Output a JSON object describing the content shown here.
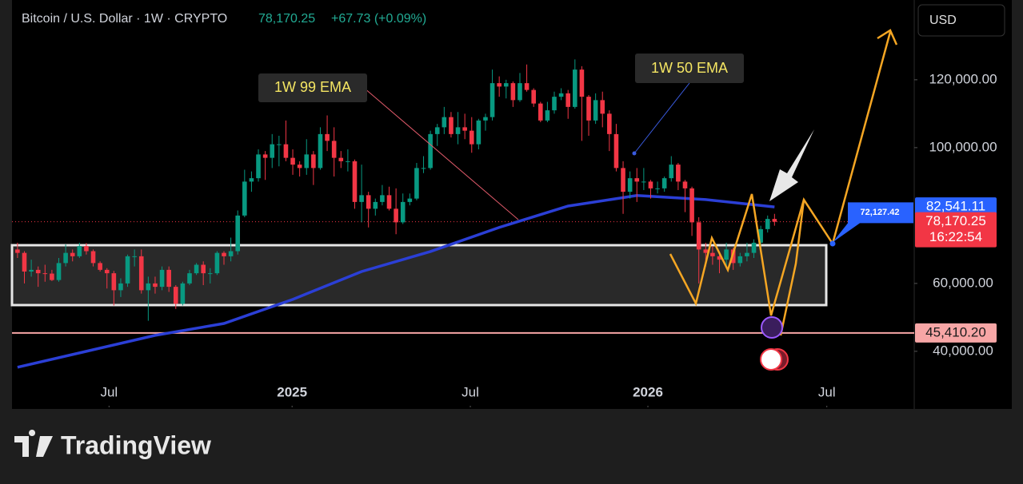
{
  "header": {
    "symbol": "Bitcoin / U.S. Dollar · 1W · CRYPTO",
    "price": "78,170.25",
    "change": "+67.73 (+0.09%)",
    "currency": "USD"
  },
  "brand": "TradingView",
  "chart_data": {
    "type": "candlestick",
    "up_color": "#089981",
    "down_color": "#f23645",
    "open": [
      70000,
      69000,
      63500,
      64000,
      63000,
      62900,
      61000,
      66000,
      69000,
      68000,
      71000,
      69500,
      66000,
      64000,
      63000,
      58000,
      60000,
      68000,
      68000,
      58000,
      60000,
      59000,
      64000,
      59000,
      54000,
      60000,
      63000,
      65500,
      63000,
      63000,
      69000,
      68000,
      69500,
      80000,
      90000,
      91000,
      98000,
      97000,
      101000,
      101000,
      97000,
      95000,
      94000,
      98000,
      94000,
      104000,
      102000,
      97000,
      96000,
      96000,
      84000,
      86000,
      82000,
      84000,
      86000,
      82000,
      78000,
      84000,
      85000,
      94000,
      94000,
      104000,
      106000,
      109000,
      104000,
      106000,
      105000,
      101000,
      108000,
      109000,
      119000,
      118000,
      119000,
      114000,
      119000,
      117000,
      113000,
      108000,
      111000,
      115000,
      116000,
      112000,
      123000,
      115000,
      108000,
      114000,
      110000,
      104000,
      94000,
      87000,
      91000,
      90000,
      90000,
      88000,
      88000,
      91000,
      95000,
      90000,
      88000,
      78000,
      70000,
      69000,
      68000,
      67000,
      70000,
      66000,
      68000,
      69000,
      72000,
      76000,
      79000
    ],
    "high": [
      72000,
      69500,
      67000,
      65000,
      65500,
      64000,
      67500,
      71500,
      70000,
      72000,
      71900,
      70000,
      66500,
      64500,
      63700,
      61500,
      68500,
      70000,
      70000,
      62000,
      62000,
      65000,
      65000,
      59500,
      60500,
      64000,
      66000,
      66500,
      64500,
      69500,
      69500,
      73500,
      81500,
      93500,
      93000,
      99500,
      99000,
      104000,
      103500,
      108000,
      99500,
      96000,
      102500,
      99000,
      106000,
      109500,
      106000,
      99000,
      99500,
      96500,
      95000,
      87000,
      85000,
      89000,
      88500,
      88000,
      86500,
      86500,
      95500,
      97500,
      105000,
      107000,
      112000,
      110500,
      110500,
      110000,
      109000,
      108500,
      110000,
      123000,
      121000,
      120000,
      119500,
      122000,
      124500,
      117500,
      113500,
      113500,
      116500,
      117500,
      117000,
      126000,
      124000,
      115500,
      116000,
      116500,
      111000,
      107000,
      96000,
      93000,
      94000,
      94000,
      90500,
      90000,
      91500,
      97500,
      95500,
      90500,
      88500,
      79500,
      72000,
      71000,
      69000,
      72000,
      70500,
      69000,
      72000,
      73000,
      77000,
      80000,
      80500
    ],
    "low": [
      67500,
      60000,
      62000,
      59000,
      60500,
      60700,
      60500,
      65000,
      66500,
      67500,
      68500,
      65000,
      63500,
      58500,
      53500,
      56000,
      59000,
      65000,
      57000,
      49000,
      57000,
      58000,
      57500,
      52500,
      53500,
      59500,
      62500,
      59500,
      60000,
      62500,
      65500,
      66500,
      68500,
      79500,
      87000,
      90000,
      90500,
      94000,
      94500,
      96000,
      92000,
      91500,
      92000,
      89000,
      93500,
      99000,
      91500,
      94000,
      93000,
      82000,
      78000,
      76500,
      80000,
      83000,
      81500,
      74500,
      77500,
      83000,
      84500,
      92500,
      93500,
      100500,
      104000,
      103000,
      101000,
      102500,
      98500,
      99500,
      105000,
      108000,
      115000,
      114500,
      112000,
      113500,
      116500,
      112000,
      107500,
      107500,
      110000,
      114000,
      108500,
      111500,
      102000,
      103500,
      107000,
      106000,
      99000,
      93000,
      80500,
      85000,
      84000,
      87500,
      85000,
      86500,
      87000,
      90000,
      87500,
      81000,
      74000,
      60000,
      65000,
      65500,
      63000,
      64500,
      64000,
      65000,
      66500,
      67500,
      71000,
      75000,
      77000
    ],
    "close": [
      69000,
      63500,
      64000,
      63000,
      62900,
      61000,
      66000,
      69000,
      68000,
      71000,
      69500,
      66000,
      64000,
      63000,
      58000,
      60000,
      68000,
      68000,
      58000,
      60000,
      59000,
      64000,
      59000,
      54000,
      60000,
      63000,
      65500,
      63000,
      63000,
      69000,
      68000,
      69500,
      80000,
      90000,
      91000,
      98000,
      97000,
      101000,
      101000,
      97000,
      95000,
      94000,
      98000,
      94000,
      104000,
      102000,
      97000,
      96000,
      96000,
      84000,
      86000,
      82000,
      84000,
      86000,
      82000,
      78000,
      84000,
      85000,
      94000,
      94000,
      104000,
      106000,
      109000,
      104000,
      106000,
      105000,
      101000,
      108000,
      109000,
      119000,
      118000,
      119000,
      114000,
      119000,
      117000,
      113000,
      108000,
      111000,
      115000,
      116000,
      112000,
      123000,
      115000,
      108000,
      114000,
      110000,
      104000,
      94000,
      87000,
      91000,
      90000,
      90000,
      88000,
      88000,
      91000,
      95000,
      90000,
      88000,
      78000,
      70000,
      69000,
      68000,
      67000,
      70000,
      66000,
      68000,
      69000,
      72000,
      76000,
      79000,
      78170.25
    ],
    "ema": {
      "color": "#2b3fd6",
      "x": [
        0,
        10,
        20,
        30,
        40,
        50,
        60,
        70,
        80,
        90,
        100,
        110
      ],
      "values": [
        35300,
        40000,
        44700,
        48200,
        55300,
        63500,
        69400,
        76500,
        82800,
        85900,
        84700,
        82541.11
      ]
    },
    "annotations": [
      "1W 99 EMA",
      "1W 50 EMA"
    ],
    "hline": {
      "value": 45410.2,
      "label": "45,410.20",
      "color": "#f7a6a6"
    },
    "price_labels": [
      {
        "value": 82541.11,
        "label": "82,541.11",
        "color": "#2962ff"
      },
      {
        "value": 78170.25,
        "label": "78,170.25",
        "color": "#f23645",
        "countdown": "16:22:54"
      },
      {
        "value": 72127.42,
        "label": "72,127.42",
        "color": "#2962ff"
      }
    ],
    "ylim": [
      23500,
      143500
    ],
    "yticks": [
      {
        "value": 40000,
        "label": "40,000.00"
      },
      {
        "value": 60000,
        "label": "60,000.00"
      },
      {
        "value": 100000,
        "label": "100,000.00"
      },
      {
        "value": 120000,
        "label": "120,000.00"
      }
    ],
    "xlim": [
      -0.8,
      130.3
    ],
    "xticks": [
      {
        "value": 13.3,
        "label": "Jul"
      },
      {
        "value": 39.9,
        "label": "2025"
      },
      {
        "value": 65.8,
        "label": "Jul"
      },
      {
        "value": 91.6,
        "label": "2026"
      },
      {
        "value": 117.6,
        "label": "Jul"
      }
    ]
  }
}
